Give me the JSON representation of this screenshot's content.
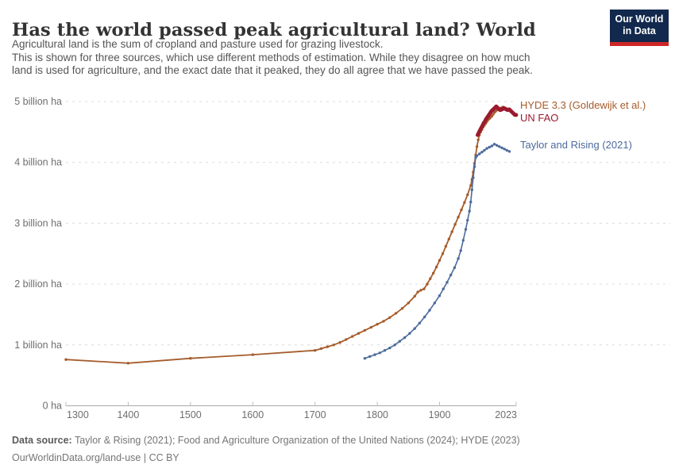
{
  "header": {
    "title": "Has the world passed peak agricultural land? World",
    "subtitle_lines": [
      "Agricultural land is the sum of cropland and pasture used for grazing livestock.",
      "This is shown for three sources, which use different methods of estimation. While they disagree on how much",
      "land is used for agriculture, and the exact date that it peaked, they do all agree that we have passed the peak."
    ],
    "logo": {
      "line1": "Our World",
      "line2": "in Data"
    }
  },
  "chart_data": {
    "type": "line",
    "title": "Has the world passed peak agricultural land? World",
    "xlabel": "",
    "ylabel": "",
    "unit": "billion ha",
    "x_domain": [
      1300,
      2023
    ],
    "y_domain_billion_ha": [
      0,
      5
    ],
    "grid": "dashed-horizontal",
    "legend_position": "end-of-line-labels-right",
    "x_ticks": [
      "1300",
      "1400",
      "1500",
      "1600",
      "1700",
      "1800",
      "1900",
      "2023"
    ],
    "y_ticks": [
      {
        "value": 0,
        "label": "0 ha"
      },
      {
        "value": 1,
        "label": "1 billion ha"
      },
      {
        "value": 2,
        "label": "2 billion ha"
      },
      {
        "value": 3,
        "label": "3 billion ha"
      },
      {
        "value": 4,
        "label": "4 billion ha"
      },
      {
        "value": 5,
        "label": "5 billion ha"
      }
    ],
    "series": [
      {
        "name": "HYDE 3.3 (Goldewijk et al.)",
        "color": "#A55C2B",
        "label_y": 137,
        "points": [
          [
            1300,
            0.76
          ],
          [
            1400,
            0.7
          ],
          [
            1500,
            0.78
          ],
          [
            1600,
            0.84
          ],
          [
            1700,
            0.91
          ],
          [
            1710,
            0.94
          ],
          [
            1720,
            0.97
          ],
          [
            1730,
            1.0
          ],
          [
            1740,
            1.04
          ],
          [
            1750,
            1.09
          ],
          [
            1760,
            1.14
          ],
          [
            1770,
            1.19
          ],
          [
            1780,
            1.24
          ],
          [
            1790,
            1.29
          ],
          [
            1800,
            1.34
          ],
          [
            1810,
            1.39
          ],
          [
            1820,
            1.45
          ],
          [
            1830,
            1.52
          ],
          [
            1840,
            1.6
          ],
          [
            1850,
            1.69
          ],
          [
            1860,
            1.8
          ],
          [
            1865,
            1.87
          ],
          [
            1870,
            1.9
          ],
          [
            1875,
            1.92
          ],
          [
            1880,
            2.0
          ],
          [
            1885,
            2.09
          ],
          [
            1890,
            2.18
          ],
          [
            1895,
            2.28
          ],
          [
            1900,
            2.39
          ],
          [
            1905,
            2.5
          ],
          [
            1910,
            2.62
          ],
          [
            1915,
            2.74
          ],
          [
            1920,
            2.86
          ],
          [
            1925,
            2.98
          ],
          [
            1930,
            3.1
          ],
          [
            1935,
            3.22
          ],
          [
            1940,
            3.34
          ],
          [
            1945,
            3.47
          ],
          [
            1950,
            3.62
          ],
          [
            1952,
            3.72
          ],
          [
            1954,
            3.84
          ],
          [
            1956,
            3.98
          ],
          [
            1958,
            4.12
          ],
          [
            1960,
            4.26
          ],
          [
            1962,
            4.37
          ],
          [
            1964,
            4.45
          ],
          [
            1966,
            4.5
          ],
          [
            1968,
            4.54
          ],
          [
            1970,
            4.58
          ],
          [
            1972,
            4.61
          ],
          [
            1974,
            4.64
          ],
          [
            1976,
            4.67
          ],
          [
            1978,
            4.7
          ],
          [
            1980,
            4.72
          ],
          [
            1982,
            4.74
          ],
          [
            1984,
            4.76
          ],
          [
            1986,
            4.79
          ],
          [
            1988,
            4.82
          ],
          [
            1990,
            4.84
          ],
          [
            1992,
            4.86
          ],
          [
            1994,
            4.87
          ],
          [
            1996,
            4.88
          ],
          [
            1998,
            4.89
          ],
          [
            2000,
            4.9
          ],
          [
            2002,
            4.91
          ],
          [
            2004,
            4.89
          ],
          [
            2006,
            4.87
          ],
          [
            2008,
            4.86
          ],
          [
            2010,
            4.87
          ],
          [
            2012,
            4.88
          ],
          [
            2014,
            4.86
          ],
          [
            2016,
            4.84
          ],
          [
            2018,
            4.82
          ],
          [
            2020,
            4.8
          ],
          [
            2023,
            4.79
          ]
        ]
      },
      {
        "name": "Taylor and Rising (2021)",
        "color": "#4C6A9C",
        "label_y": 187,
        "points": [
          [
            1780,
            0.78
          ],
          [
            1788,
            0.81
          ],
          [
            1796,
            0.84
          ],
          [
            1804,
            0.87
          ],
          [
            1812,
            0.91
          ],
          [
            1820,
            0.95
          ],
          [
            1828,
            1.0
          ],
          [
            1836,
            1.06
          ],
          [
            1844,
            1.12
          ],
          [
            1852,
            1.19
          ],
          [
            1860,
            1.27
          ],
          [
            1868,
            1.36
          ],
          [
            1876,
            1.46
          ],
          [
            1884,
            1.57
          ],
          [
            1892,
            1.69
          ],
          [
            1900,
            1.81
          ],
          [
            1906,
            1.92
          ],
          [
            1912,
            2.03
          ],
          [
            1918,
            2.15
          ],
          [
            1924,
            2.27
          ],
          [
            1930,
            2.42
          ],
          [
            1934,
            2.55
          ],
          [
            1938,
            2.72
          ],
          [
            1942,
            2.9
          ],
          [
            1945,
            3.05
          ],
          [
            1948,
            3.2
          ],
          [
            1950,
            3.35
          ],
          [
            1952,
            3.55
          ],
          [
            1954,
            3.75
          ],
          [
            1956,
            3.93
          ],
          [
            1958,
            4.08
          ],
          [
            1960,
            4.11
          ],
          [
            1964,
            4.14
          ],
          [
            1968,
            4.17
          ],
          [
            1972,
            4.2
          ],
          [
            1976,
            4.23
          ],
          [
            1980,
            4.25
          ],
          [
            1984,
            4.27
          ],
          [
            1988,
            4.3
          ],
          [
            1992,
            4.28
          ],
          [
            1996,
            4.26
          ],
          [
            2000,
            4.24
          ],
          [
            2004,
            4.22
          ],
          [
            2008,
            4.2
          ],
          [
            2012,
            4.18
          ]
        ]
      },
      {
        "name": "UN FAO",
        "color": "#9C1A2E",
        "label_y": 153,
        "points": [
          [
            1961,
            4.45
          ],
          [
            1962,
            4.47
          ],
          [
            1963,
            4.49
          ],
          [
            1964,
            4.51
          ],
          [
            1965,
            4.53
          ],
          [
            1966,
            4.55
          ],
          [
            1967,
            4.57
          ],
          [
            1968,
            4.59
          ],
          [
            1969,
            4.61
          ],
          [
            1970,
            4.63
          ],
          [
            1971,
            4.65
          ],
          [
            1972,
            4.66
          ],
          [
            1973,
            4.68
          ],
          [
            1974,
            4.7
          ],
          [
            1975,
            4.72
          ],
          [
            1976,
            4.73
          ],
          [
            1977,
            4.75
          ],
          [
            1978,
            4.76
          ],
          [
            1979,
            4.78
          ],
          [
            1980,
            4.79
          ],
          [
            1981,
            4.81
          ],
          [
            1982,
            4.82
          ],
          [
            1983,
            4.84
          ],
          [
            1984,
            4.85
          ],
          [
            1985,
            4.86
          ],
          [
            1986,
            4.87
          ],
          [
            1987,
            4.88
          ],
          [
            1988,
            4.89
          ],
          [
            1989,
            4.9
          ],
          [
            1990,
            4.91
          ],
          [
            1991,
            4.92
          ],
          [
            1992,
            4.91
          ],
          [
            1993,
            4.9
          ],
          [
            1994,
            4.89
          ],
          [
            1995,
            4.88
          ],
          [
            1996,
            4.87
          ],
          [
            1997,
            4.86
          ],
          [
            1998,
            4.86
          ],
          [
            1999,
            4.87
          ],
          [
            2000,
            4.87
          ],
          [
            2001,
            4.88
          ],
          [
            2002,
            4.88
          ],
          [
            2003,
            4.89
          ],
          [
            2004,
            4.89
          ],
          [
            2005,
            4.88
          ],
          [
            2006,
            4.88
          ],
          [
            2007,
            4.87
          ],
          [
            2008,
            4.87
          ],
          [
            2009,
            4.86
          ],
          [
            2010,
            4.86
          ],
          [
            2011,
            4.87
          ],
          [
            2012,
            4.87
          ],
          [
            2013,
            4.86
          ],
          [
            2014,
            4.85
          ],
          [
            2015,
            4.84
          ],
          [
            2016,
            4.83
          ],
          [
            2017,
            4.82
          ],
          [
            2018,
            4.81
          ],
          [
            2019,
            4.8
          ],
          [
            2020,
            4.79
          ],
          [
            2021,
            4.78
          ],
          [
            2022,
            4.78
          ],
          [
            2023,
            4.78
          ]
        ]
      }
    ]
  },
  "footer": {
    "data_source_label": "Data source:",
    "data_source_text": " Taylor & Rising (2021); Food and Agriculture Organization of the United Nations (2024); HYDE (2023)",
    "url": "OurWorldinData.org/land-use",
    "separator": " | ",
    "license": "CC BY"
  }
}
